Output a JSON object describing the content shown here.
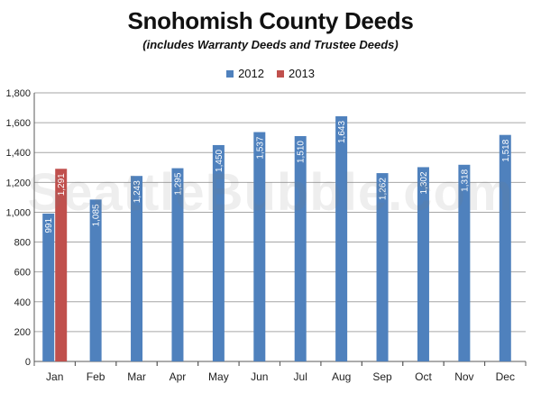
{
  "chart_data": {
    "type": "bar",
    "title": "Snohomish County Deeds",
    "subtitle": "(includes Warranty Deeds and Trustee Deeds)",
    "categories": [
      "Jan",
      "Feb",
      "Mar",
      "Apr",
      "May",
      "Jun",
      "Jul",
      "Aug",
      "Sep",
      "Oct",
      "Nov",
      "Dec"
    ],
    "series": [
      {
        "name": "2012",
        "color": "#4f81bd",
        "values": [
          991,
          1085,
          1243,
          1295,
          1450,
          1537,
          1510,
          1643,
          1262,
          1302,
          1318,
          1518
        ],
        "labels": [
          "991",
          "1,085",
          "1,243",
          "1,295",
          "1,450",
          "1,537",
          "1,510",
          "1,643",
          "1,262",
          "1,302",
          "1,318",
          "1,518"
        ]
      },
      {
        "name": "2013",
        "color": "#c0504d",
        "values": [
          1291,
          null,
          null,
          null,
          null,
          null,
          null,
          null,
          null,
          null,
          null,
          null
        ],
        "labels": [
          "1,291",
          "",
          "",
          "",
          "",
          "",
          "",
          "",
          "",
          "",
          "",
          ""
        ]
      }
    ],
    "ylim": [
      0,
      1800
    ],
    "yticks": [
      0,
      200,
      400,
      600,
      800,
      1000,
      1200,
      1400,
      1600,
      1800
    ],
    "ytick_labels": [
      "0",
      "200",
      "400",
      "600",
      "800",
      "1,000",
      "1,200",
      "1,400",
      "1,600",
      "1,800"
    ],
    "xlabel": "",
    "ylabel": "",
    "grid": true,
    "legend_position": "top-center"
  },
  "watermark": "SeattleBubble.com"
}
